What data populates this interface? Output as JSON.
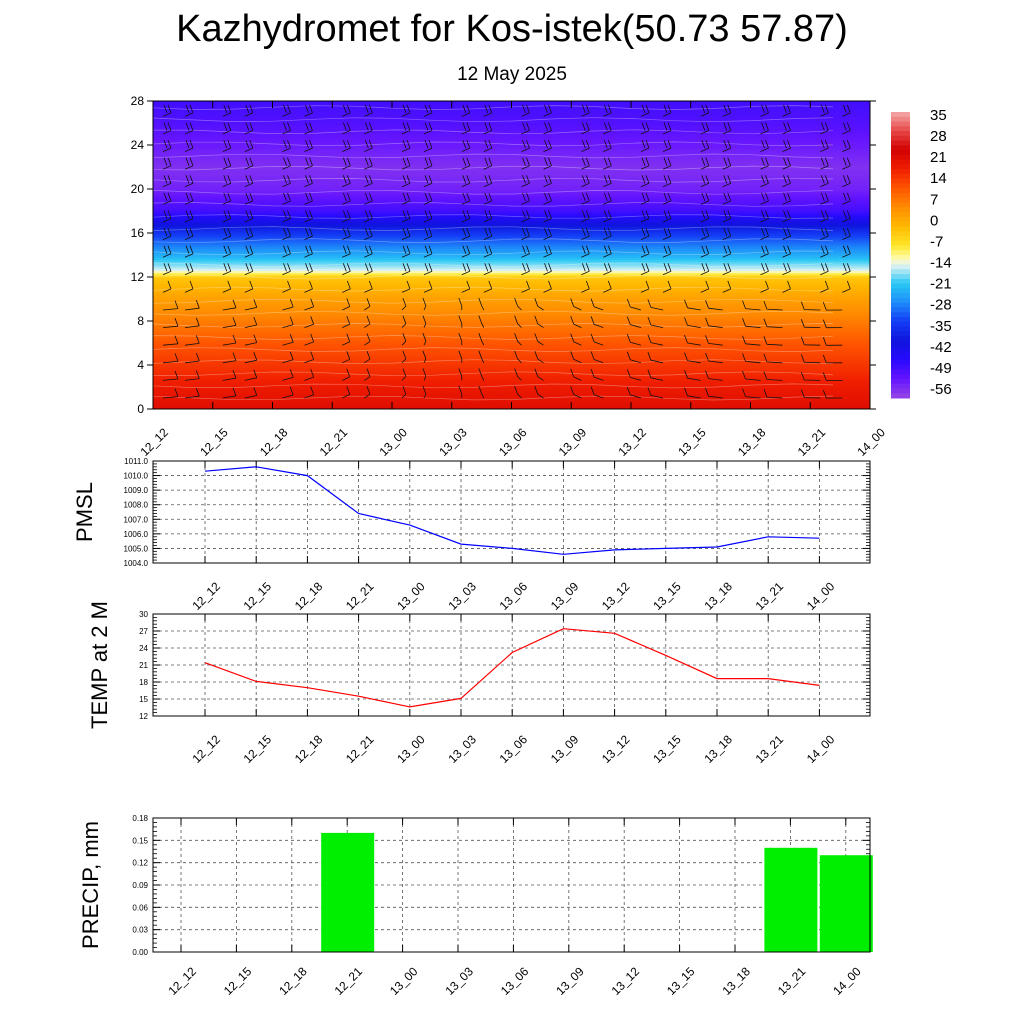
{
  "header": {
    "title": "Kazhydromet for Kos-istek(50.73 57.87)",
    "subtitle": "12 May 2025"
  },
  "time_labels": [
    "12_12",
    "12_15",
    "12_18",
    "12_21",
    "13_00",
    "13_03",
    "13_06",
    "13_09",
    "13_12",
    "13_15",
    "13_18",
    "13_21",
    "14_00"
  ],
  "chart_data": [
    {
      "type": "heatmap",
      "title": "",
      "xlabel": "",
      "ylabel": "",
      "y_ticks": [
        0,
        4,
        8,
        12,
        16,
        20,
        24,
        28
      ],
      "ylim": [
        0,
        28
      ],
      "colorbar_labels": [
        "35",
        "28",
        "21",
        "14",
        "7",
        "0",
        "-7",
        "-14",
        "-21",
        "-28",
        "-35",
        "-42",
        "-49",
        "-56"
      ],
      "colorbar_range": [
        -63,
        42
      ],
      "temperature_profile": [
        {
          "level": 0,
          "value": 25
        },
        {
          "level": 2,
          "value": 22
        },
        {
          "level": 4,
          "value": 18
        },
        {
          "level": 6,
          "value": 14
        },
        {
          "level": 8,
          "value": 9
        },
        {
          "level": 10,
          "value": 4
        },
        {
          "level": 12,
          "value": -2
        },
        {
          "level": 12.6,
          "value": -14
        },
        {
          "level": 14,
          "value": -24
        },
        {
          "level": 16,
          "value": -36
        },
        {
          "level": 18,
          "value": -52
        },
        {
          "level": 20,
          "value": -58
        },
        {
          "level": 22,
          "value": -60
        },
        {
          "level": 24,
          "value": -57
        },
        {
          "level": 26,
          "value": -54
        },
        {
          "level": 28,
          "value": -52
        }
      ],
      "wind_barbs": true
    },
    {
      "type": "line",
      "ylabel": "PMSL",
      "ylim": [
        1004.0,
        1011.0
      ],
      "y_ticks": [
        "1004.0",
        "1005.0",
        "1006.0",
        "1007.0",
        "1008.0",
        "1009.0",
        "1010.0",
        "1011.0"
      ],
      "series": [
        {
          "color": "#0000ff",
          "values": [
            1010.3,
            1010.6,
            1010.0,
            1007.4,
            1006.6,
            1005.3,
            1005.0,
            1004.6,
            1004.9,
            1005.0,
            1005.1,
            1005.8,
            1005.7
          ]
        }
      ],
      "grid": true
    },
    {
      "type": "line",
      "ylabel": "TEMP at 2 M",
      "ylim": [
        12,
        30
      ],
      "y_ticks": [
        "12",
        "15",
        "18",
        "21",
        "24",
        "27",
        "30"
      ],
      "series": [
        {
          "color": "#ff0000",
          "values": [
            21.4,
            18.1,
            17.0,
            15.5,
            13.6,
            15.1,
            23.2,
            27.4,
            26.6,
            22.7,
            18.6,
            18.6,
            17.4
          ]
        }
      ],
      "grid": true
    },
    {
      "type": "bar",
      "ylabel": "PRECIP, mm",
      "ylim": [
        0,
        0.18
      ],
      "y_ticks": [
        "0.00",
        "0.03",
        "0.06",
        "0.09",
        "0.12",
        "0.15",
        "0.18"
      ],
      "bars": [
        {
          "category": "12_21",
          "value": 0.16
        },
        {
          "category": "13_21",
          "value": 0.14
        },
        {
          "category": "14_00",
          "value": 0.13
        }
      ],
      "bar_color": "#00ee00",
      "grid": true
    }
  ]
}
